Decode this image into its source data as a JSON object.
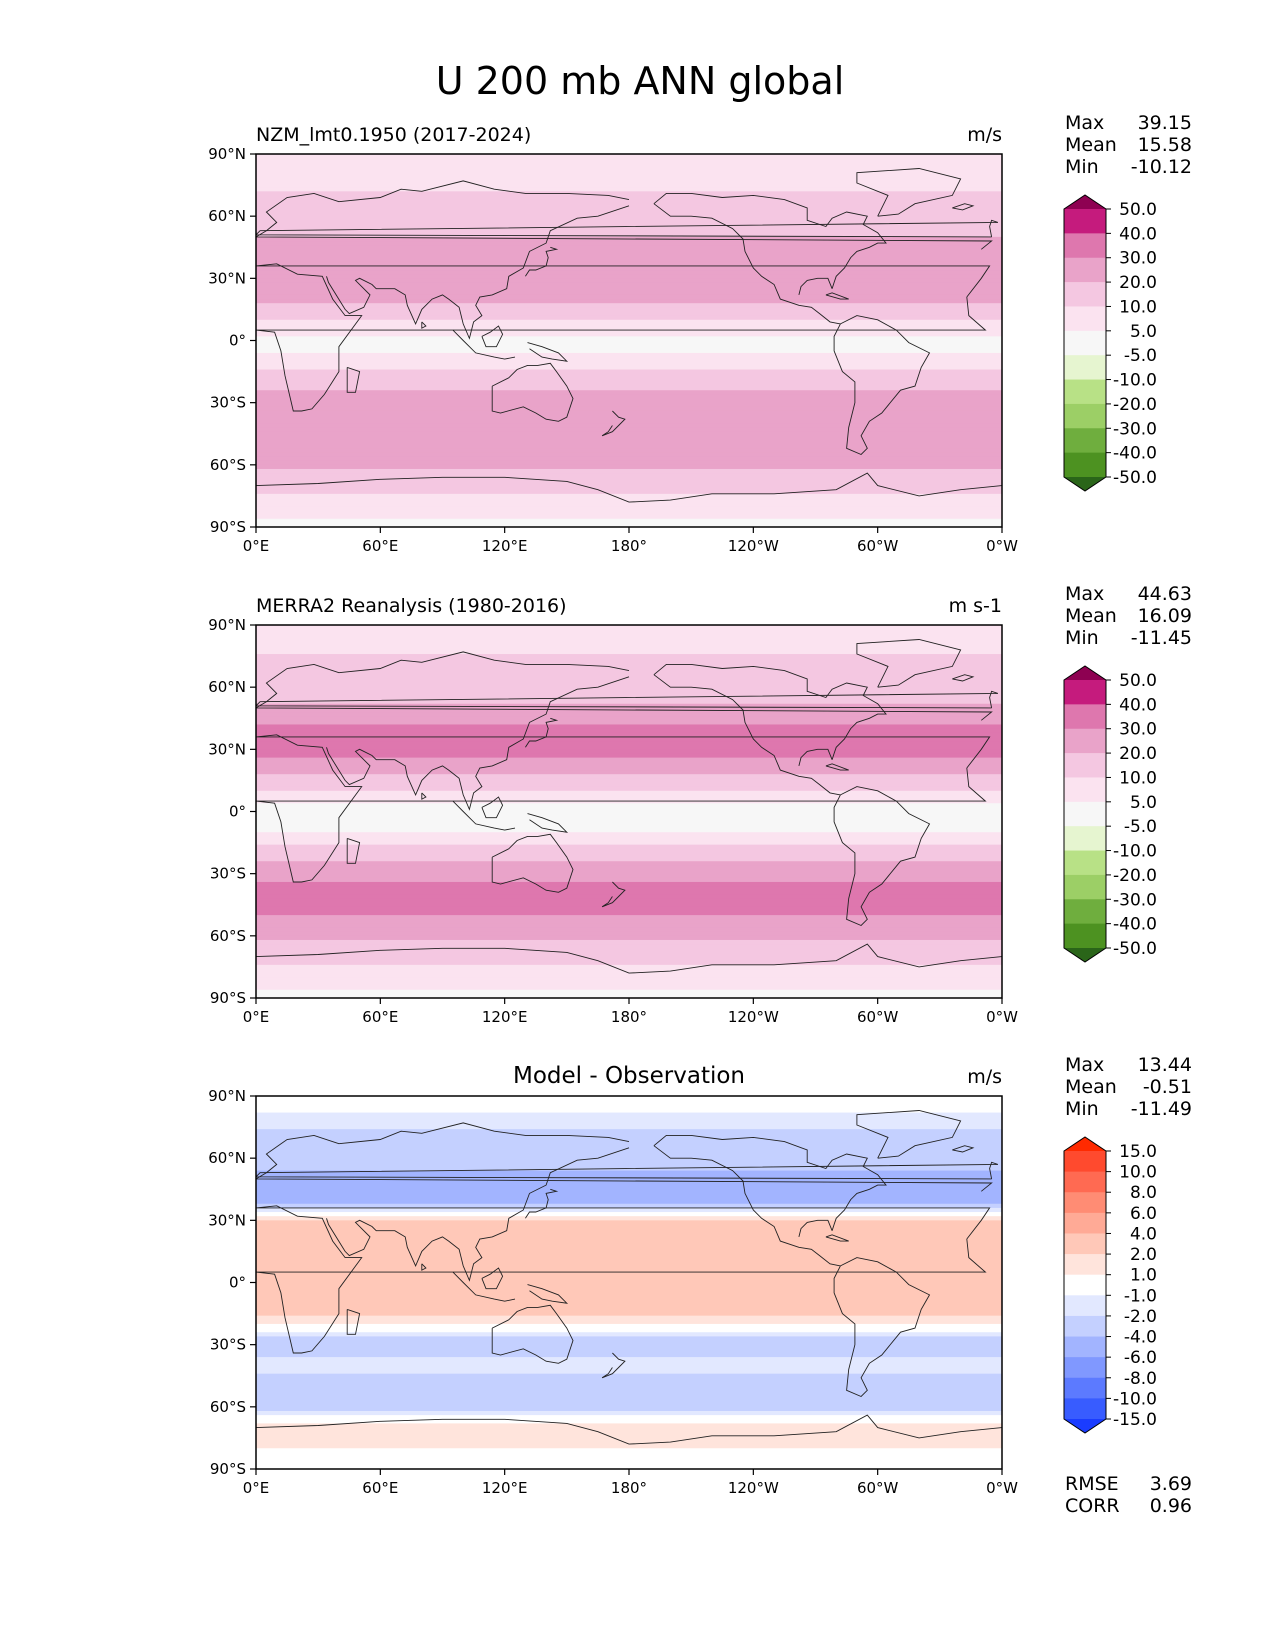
{
  "figure_title": "U 200 mb ANN global",
  "chart_data": [
    {
      "type": "heatmap",
      "panel": "test",
      "title": "NZM_lmt0.1950 (2017-2024)",
      "centered_title": "",
      "units": "m/s",
      "xlabel": "",
      "ylabel": "",
      "x_ticks": [
        "0°E",
        "60°E",
        "120°E",
        "180°",
        "120°W",
        "60°W",
        "0°W"
      ],
      "y_ticks": [
        "90°N",
        "60°N",
        "30°N",
        "0°",
        "30°S",
        "60°S",
        "90°S"
      ],
      "stats": [
        {
          "label": "Max",
          "value": "39.15"
        },
        {
          "label": "Mean",
          "value": "15.58"
        },
        {
          "label": "Min",
          "value": "-10.12"
        }
      ],
      "colorbar": {
        "levels": [
          "50.0",
          "40.0",
          "30.0",
          "20.0",
          "10.0",
          "5.0",
          "-5.0",
          "-10.0",
          "-20.0",
          "-30.0",
          "-40.0",
          "-50.0"
        ],
        "colors": [
          "#8e0152",
          "#c51b7d",
          "#de77ae",
          "#e9a3c9",
          "#f4c7e1",
          "#fbe3f0",
          "#f7f7f7",
          "#e6f5d0",
          "#b8e186",
          "#9ccf66",
          "#6fae3e",
          "#4d9221",
          "#2a6519"
        ]
      },
      "zonal_profile_lat": [
        90,
        75,
        60,
        50,
        40,
        30,
        20,
        10,
        0,
        -10,
        -20,
        -30,
        -40,
        -50,
        -60,
        -70,
        -80,
        -90
      ],
      "zonal_profile_u": [
        6,
        9,
        14,
        20,
        27,
        30,
        22,
        10,
        3,
        6,
        14,
        26,
        30,
        28,
        22,
        12,
        6,
        4
      ]
    },
    {
      "type": "heatmap",
      "panel": "reference",
      "title": "MERRA2 Reanalysis (1980-2016)",
      "centered_title": "",
      "units": "m s-1",
      "xlabel": "",
      "ylabel": "",
      "x_ticks": [
        "0°E",
        "60°E",
        "120°E",
        "180°",
        "120°W",
        "60°W",
        "0°W"
      ],
      "y_ticks": [
        "90°N",
        "60°N",
        "30°N",
        "0°",
        "30°S",
        "60°S",
        "90°S"
      ],
      "stats": [
        {
          "label": "Max",
          "value": "44.63"
        },
        {
          "label": "Mean",
          "value": "16.09"
        },
        {
          "label": "Min",
          "value": "-11.45"
        }
      ],
      "colorbar": {
        "levels": [
          "50.0",
          "40.0",
          "30.0",
          "20.0",
          "10.0",
          "5.0",
          "-5.0",
          "-10.0",
          "-20.0",
          "-30.0",
          "-40.0",
          "-50.0"
        ],
        "colors": [
          "#8e0152",
          "#c51b7d",
          "#de77ae",
          "#e9a3c9",
          "#f4c7e1",
          "#fbe3f0",
          "#f7f7f7",
          "#e6f5d0",
          "#b8e186",
          "#9ccf66",
          "#6fae3e",
          "#4d9221",
          "#2a6519"
        ]
      },
      "zonal_profile_lat": [
        90,
        75,
        60,
        50,
        40,
        30,
        20,
        10,
        0,
        -10,
        -20,
        -30,
        -40,
        -50,
        -60,
        -70,
        -80,
        -90
      ],
      "zonal_profile_u": [
        6,
        10,
        15,
        22,
        32,
        35,
        24,
        10,
        2,
        5,
        14,
        28,
        34,
        30,
        22,
        12,
        6,
        4
      ]
    },
    {
      "type": "heatmap",
      "panel": "difference",
      "title": "",
      "centered_title": "Model - Observation",
      "units": "m/s",
      "xlabel": "",
      "ylabel": "",
      "x_ticks": [
        "0°E",
        "60°E",
        "120°E",
        "180°",
        "120°W",
        "60°W",
        "0°W"
      ],
      "y_ticks": [
        "90°N",
        "60°N",
        "30°N",
        "0°",
        "30°S",
        "60°S",
        "90°S"
      ],
      "stats": [
        {
          "label": "Max",
          "value": "13.44"
        },
        {
          "label": "Mean",
          "value": "-0.51"
        },
        {
          "label": "Min",
          "value": "-11.49"
        }
      ],
      "metrics": [
        {
          "label": "RMSE",
          "value": "3.69"
        },
        {
          "label": "CORR",
          "value": "0.96"
        }
      ],
      "colorbar": {
        "levels": [
          "15.0",
          "10.0",
          "8.0",
          "6.0",
          "4.0",
          "2.0",
          "1.0",
          "-1.0",
          "-2.0",
          "-4.0",
          "-6.0",
          "-8.0",
          "-10.0",
          "-15.0"
        ],
        "colors": [
          "#ff2a00",
          "#ff4a2e",
          "#ff6a52",
          "#ff8c74",
          "#ffaa96",
          "#ffc8b8",
          "#ffe4dc",
          "#ffffff",
          "#e2e8ff",
          "#c4d0ff",
          "#a2b4ff",
          "#8098ff",
          "#5c7aff",
          "#385cff",
          "#1a3cff"
        ]
      },
      "zonal_profile_lat": [
        90,
        75,
        60,
        50,
        40,
        30,
        20,
        10,
        0,
        -10,
        -20,
        -30,
        -40,
        -50,
        -60,
        -70,
        -80,
        -90
      ],
      "zonal_profile_u": [
        0,
        -2,
        -3,
        -5,
        -6,
        2,
        3,
        3,
        4,
        3,
        1,
        -4,
        -1,
        -4,
        -3,
        2,
        1,
        0
      ]
    }
  ]
}
